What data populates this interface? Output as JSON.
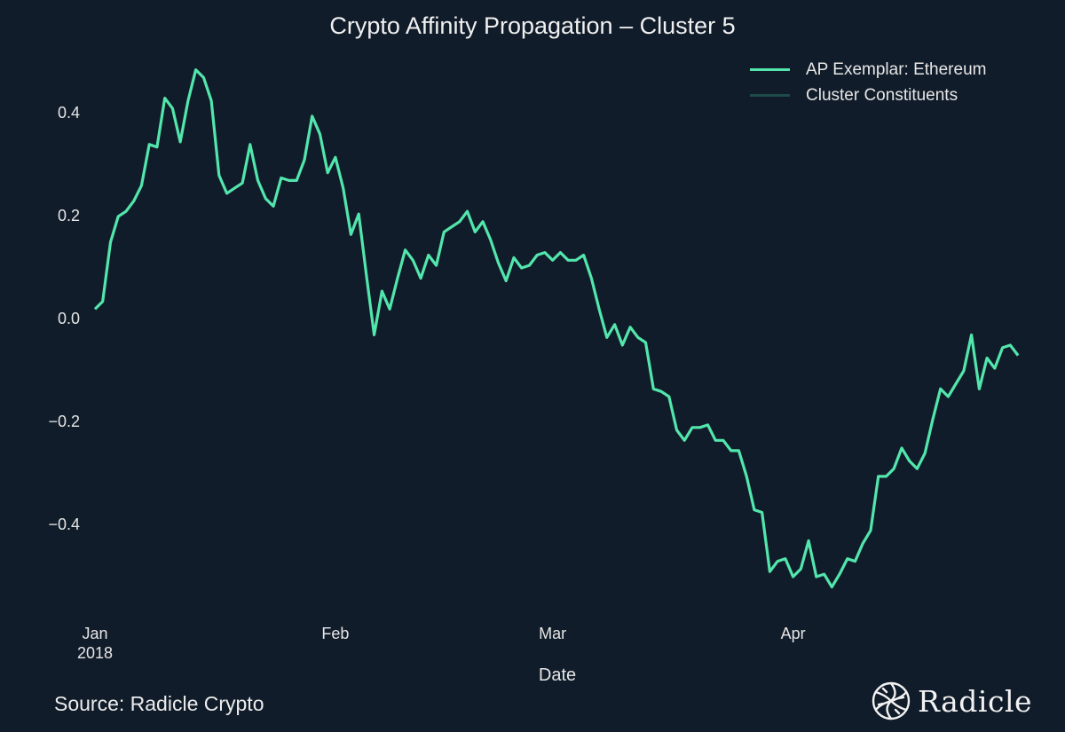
{
  "chart_data": {
    "type": "line",
    "title": "Crypto Affinity Propagation – Cluster 5",
    "xlabel": "Date",
    "ylabel": "",
    "ylim": [
      -0.56,
      0.52
    ],
    "x_start": "2018-01-01",
    "x_unit": "day",
    "x_range_days": [
      0,
      120
    ],
    "grid": false,
    "legend_position": "top-right",
    "yticks": [
      {
        "value": 0.4,
        "label": "0.4"
      },
      {
        "value": 0.2,
        "label": "0.2"
      },
      {
        "value": 0.0,
        "label": "0.0"
      },
      {
        "value": -0.2,
        "label": "−0.2"
      },
      {
        "value": -0.4,
        "label": "−0.4"
      }
    ],
    "xticks": [
      {
        "day": 0,
        "label": "Jan",
        "sublabel": "2018"
      },
      {
        "day": 31,
        "label": "Feb",
        "sublabel": ""
      },
      {
        "day": 59,
        "label": "Mar",
        "sublabel": ""
      },
      {
        "day": 90,
        "label": "Apr",
        "sublabel": ""
      }
    ],
    "series": [
      {
        "name": "AP Exemplar: Ethereum",
        "color": "#52e6ac",
        "values": [
          0.02,
          0.035,
          0.15,
          0.2,
          0.21,
          0.23,
          0.26,
          0.34,
          0.335,
          0.43,
          0.41,
          0.345,
          0.425,
          0.485,
          0.47,
          0.425,
          0.28,
          0.245,
          0.255,
          0.265,
          0.34,
          0.27,
          0.235,
          0.22,
          0.275,
          0.27,
          0.27,
          0.31,
          0.395,
          0.36,
          0.285,
          0.315,
          0.255,
          0.165,
          0.205,
          0.085,
          -0.03,
          0.055,
          0.02,
          0.08,
          0.135,
          0.115,
          0.08,
          0.125,
          0.105,
          0.17,
          0.18,
          0.19,
          0.21,
          0.17,
          0.19,
          0.155,
          0.11,
          0.075,
          0.12,
          0.1,
          0.105,
          0.125,
          0.13,
          0.115,
          0.13,
          0.115,
          0.115,
          0.125,
          0.08,
          0.02,
          -0.035,
          -0.01,
          -0.05,
          -0.015,
          -0.035,
          -0.045,
          -0.135,
          -0.14,
          -0.15,
          -0.215,
          -0.235,
          -0.21,
          -0.21,
          -0.205,
          -0.235,
          -0.235,
          -0.255,
          -0.255,
          -0.305,
          -0.37,
          -0.375,
          -0.49,
          -0.47,
          -0.465,
          -0.5,
          -0.485,
          -0.43,
          -0.5,
          -0.495,
          -0.52,
          -0.495,
          -0.465,
          -0.47,
          -0.435,
          -0.41,
          -0.305,
          -0.305,
          -0.29,
          -0.25,
          -0.275,
          -0.29,
          -0.26,
          -0.195,
          -0.135,
          -0.15,
          -0.125,
          -0.1,
          -0.03,
          -0.135,
          -0.075,
          -0.095,
          -0.055,
          -0.05,
          -0.07
        ]
      },
      {
        "name": "Cluster Constituents",
        "color": "#1f4a4a",
        "values": []
      }
    ]
  },
  "footer": {
    "source": "Source: Radicle Crypto",
    "brand": "Radicle"
  },
  "colors": {
    "background": "#111c2a",
    "exemplar": "#52e6ac",
    "constituents": "#1f4a4a"
  }
}
